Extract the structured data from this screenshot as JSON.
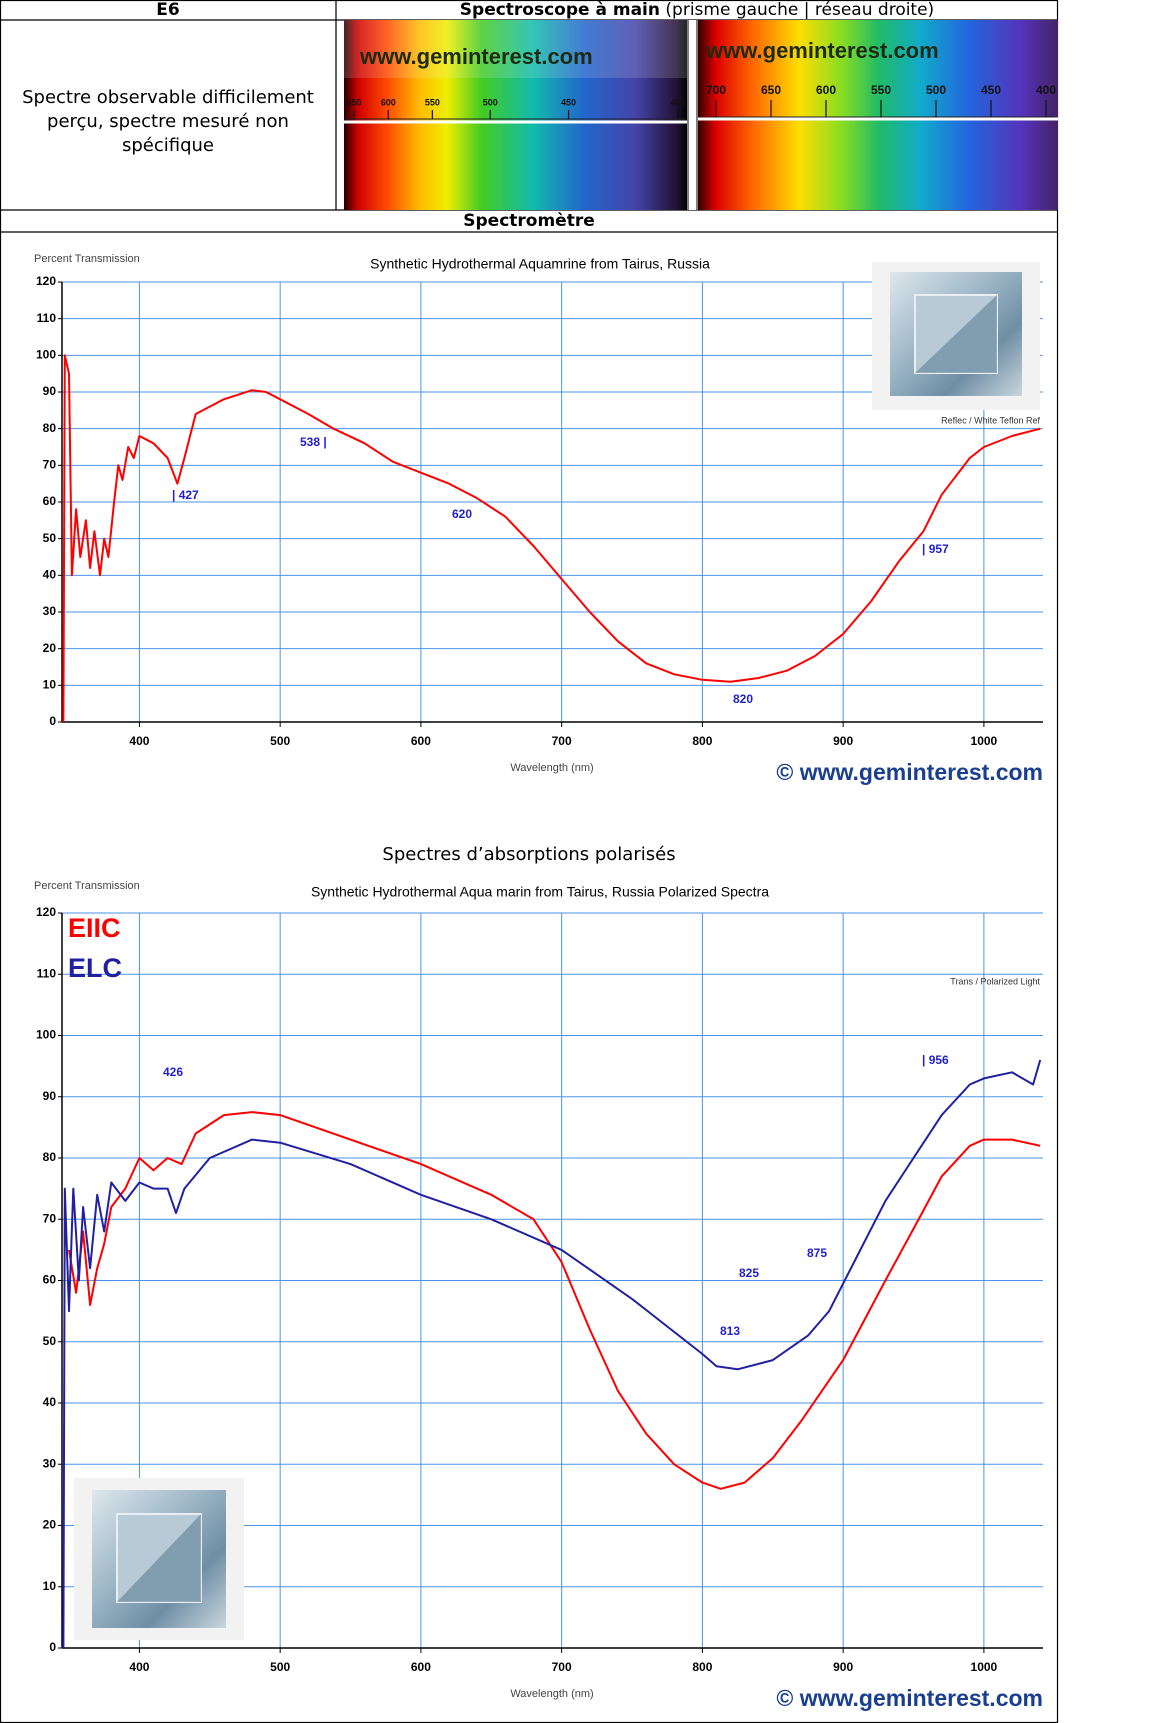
{
  "table": {
    "header_left": "E6",
    "header_right_bold": "Spectroscope à main",
    "header_right_note": "(prisme gauche | réseau droite)",
    "description": "Spectre observable difficilement perçu, spectre mesuré non spécifique",
    "spectra": [
      {
        "watermark": "www.geminterest.com",
        "scale": [
          650,
          600,
          550,
          500,
          450,
          400
        ]
      },
      {
        "watermark": "www.geminterest.com",
        "scale": [
          700,
          650,
          600,
          550,
          500,
          450,
          400
        ]
      }
    ],
    "section": "Spectromètre",
    "polarized_heading": "Spectres d’absorptions polarisés"
  },
  "chart_data": [
    {
      "type": "line",
      "title": "Synthetic Hydrothermal Aquamrine from Tairus, Russia",
      "y_label": "Percent Transmission",
      "x_label": "Wavelength (nm)",
      "note": "Reflec / White Teflon Ref",
      "watermark": "© www.geminterest.com",
      "color": "#ff0000",
      "x": [
        346,
        347,
        350,
        352,
        355,
        358,
        362,
        365,
        368,
        372,
        375,
        378,
        382,
        385,
        388,
        392,
        396,
        400,
        410,
        420,
        427,
        432,
        440,
        460,
        480,
        490,
        500,
        520,
        538,
        560,
        580,
        600,
        620,
        640,
        660,
        680,
        700,
        720,
        740,
        760,
        780,
        800,
        820,
        840,
        860,
        880,
        900,
        920,
        940,
        957,
        970,
        990,
        1000,
        1020,
        1040
      ],
      "values": [
        0,
        100,
        95,
        40,
        58,
        45,
        55,
        42,
        52,
        40,
        50,
        45,
        60,
        70,
        66,
        75,
        72,
        78,
        76,
        72,
        65,
        72,
        84,
        88,
        90.5,
        90,
        88,
        84,
        80,
        76,
        71,
        68,
        65,
        61,
        56,
        48,
        39,
        30,
        22,
        16,
        13,
        11.5,
        11,
        12,
        14,
        18,
        24,
        33,
        44,
        52,
        62,
        72,
        75,
        78,
        80
      ],
      "xlim": [
        345,
        1042
      ],
      "ylim": [
        0,
        120
      ],
      "xticks": [
        400,
        500,
        600,
        700,
        800,
        900,
        1000
      ],
      "yticks": [
        0,
        10,
        20,
        30,
        40,
        50,
        60,
        70,
        80,
        90,
        100,
        110,
        120
      ],
      "grid": true,
      "annotations": [
        "538 |",
        "| 427",
        "620",
        "820",
        "| 957"
      ]
    },
    {
      "type": "line",
      "title": "Synthetic Hydrothermal Aqua marin from Tairus, Russia Polarized Spectra",
      "y_label": "Percent Transmission",
      "x_label": "Wavelength (nm)",
      "note": "Trans / Polarized Light",
      "watermark": "© www.geminterest.com",
      "series": [
        {
          "name": "EIIC",
          "color": "#ff0000",
          "x": [
            350,
            355,
            360,
            365,
            370,
            375,
            380,
            390,
            400,
            410,
            420,
            430,
            440,
            460,
            480,
            500,
            550,
            600,
            650,
            680,
            700,
            720,
            740,
            760,
            780,
            800,
            813,
            830,
            850,
            870,
            900,
            930,
            956,
            970,
            990,
            1000,
            1020,
            1040
          ],
          "values": [
            65,
            58,
            68,
            56,
            62,
            66,
            72,
            75,
            80,
            78,
            80,
            79,
            84,
            87,
            87.5,
            87,
            83,
            79,
            74,
            70,
            63,
            52,
            42,
            35,
            30,
            27,
            26,
            27,
            31,
            37,
            47,
            60,
            71,
            77,
            82,
            83,
            83,
            82
          ]
        },
        {
          "name": "ELC",
          "color": "#2020a0",
          "x": [
            346,
            347,
            350,
            353,
            357,
            360,
            365,
            370,
            375,
            380,
            390,
            400,
            410,
            420,
            426,
            432,
            450,
            480,
            500,
            550,
            600,
            650,
            700,
            750,
            800,
            810,
            825,
            850,
            875,
            890,
            910,
            930,
            950,
            970,
            990,
            1000,
            1020,
            1035,
            1040
          ],
          "values": [
            0,
            75,
            55,
            75,
            60,
            72,
            62,
            74,
            68,
            76,
            73,
            76,
            75,
            75,
            71,
            75,
            80,
            83,
            82.5,
            79,
            74,
            70,
            65,
            57,
            48,
            46,
            45.5,
            47,
            51,
            55,
            64,
            73,
            80,
            87,
            92,
            93,
            94,
            92,
            96
          ]
        }
      ],
      "xlim": [
        345,
        1042
      ],
      "ylim": [
        0,
        120
      ],
      "xticks": [
        400,
        500,
        600,
        700,
        800,
        900,
        1000
      ],
      "yticks": [
        0,
        10,
        20,
        30,
        40,
        50,
        60,
        70,
        80,
        90,
        100,
        110,
        120
      ],
      "grid": true,
      "annotations": [
        "426",
        "825",
        "875",
        "813",
        "| 956"
      ]
    }
  ]
}
